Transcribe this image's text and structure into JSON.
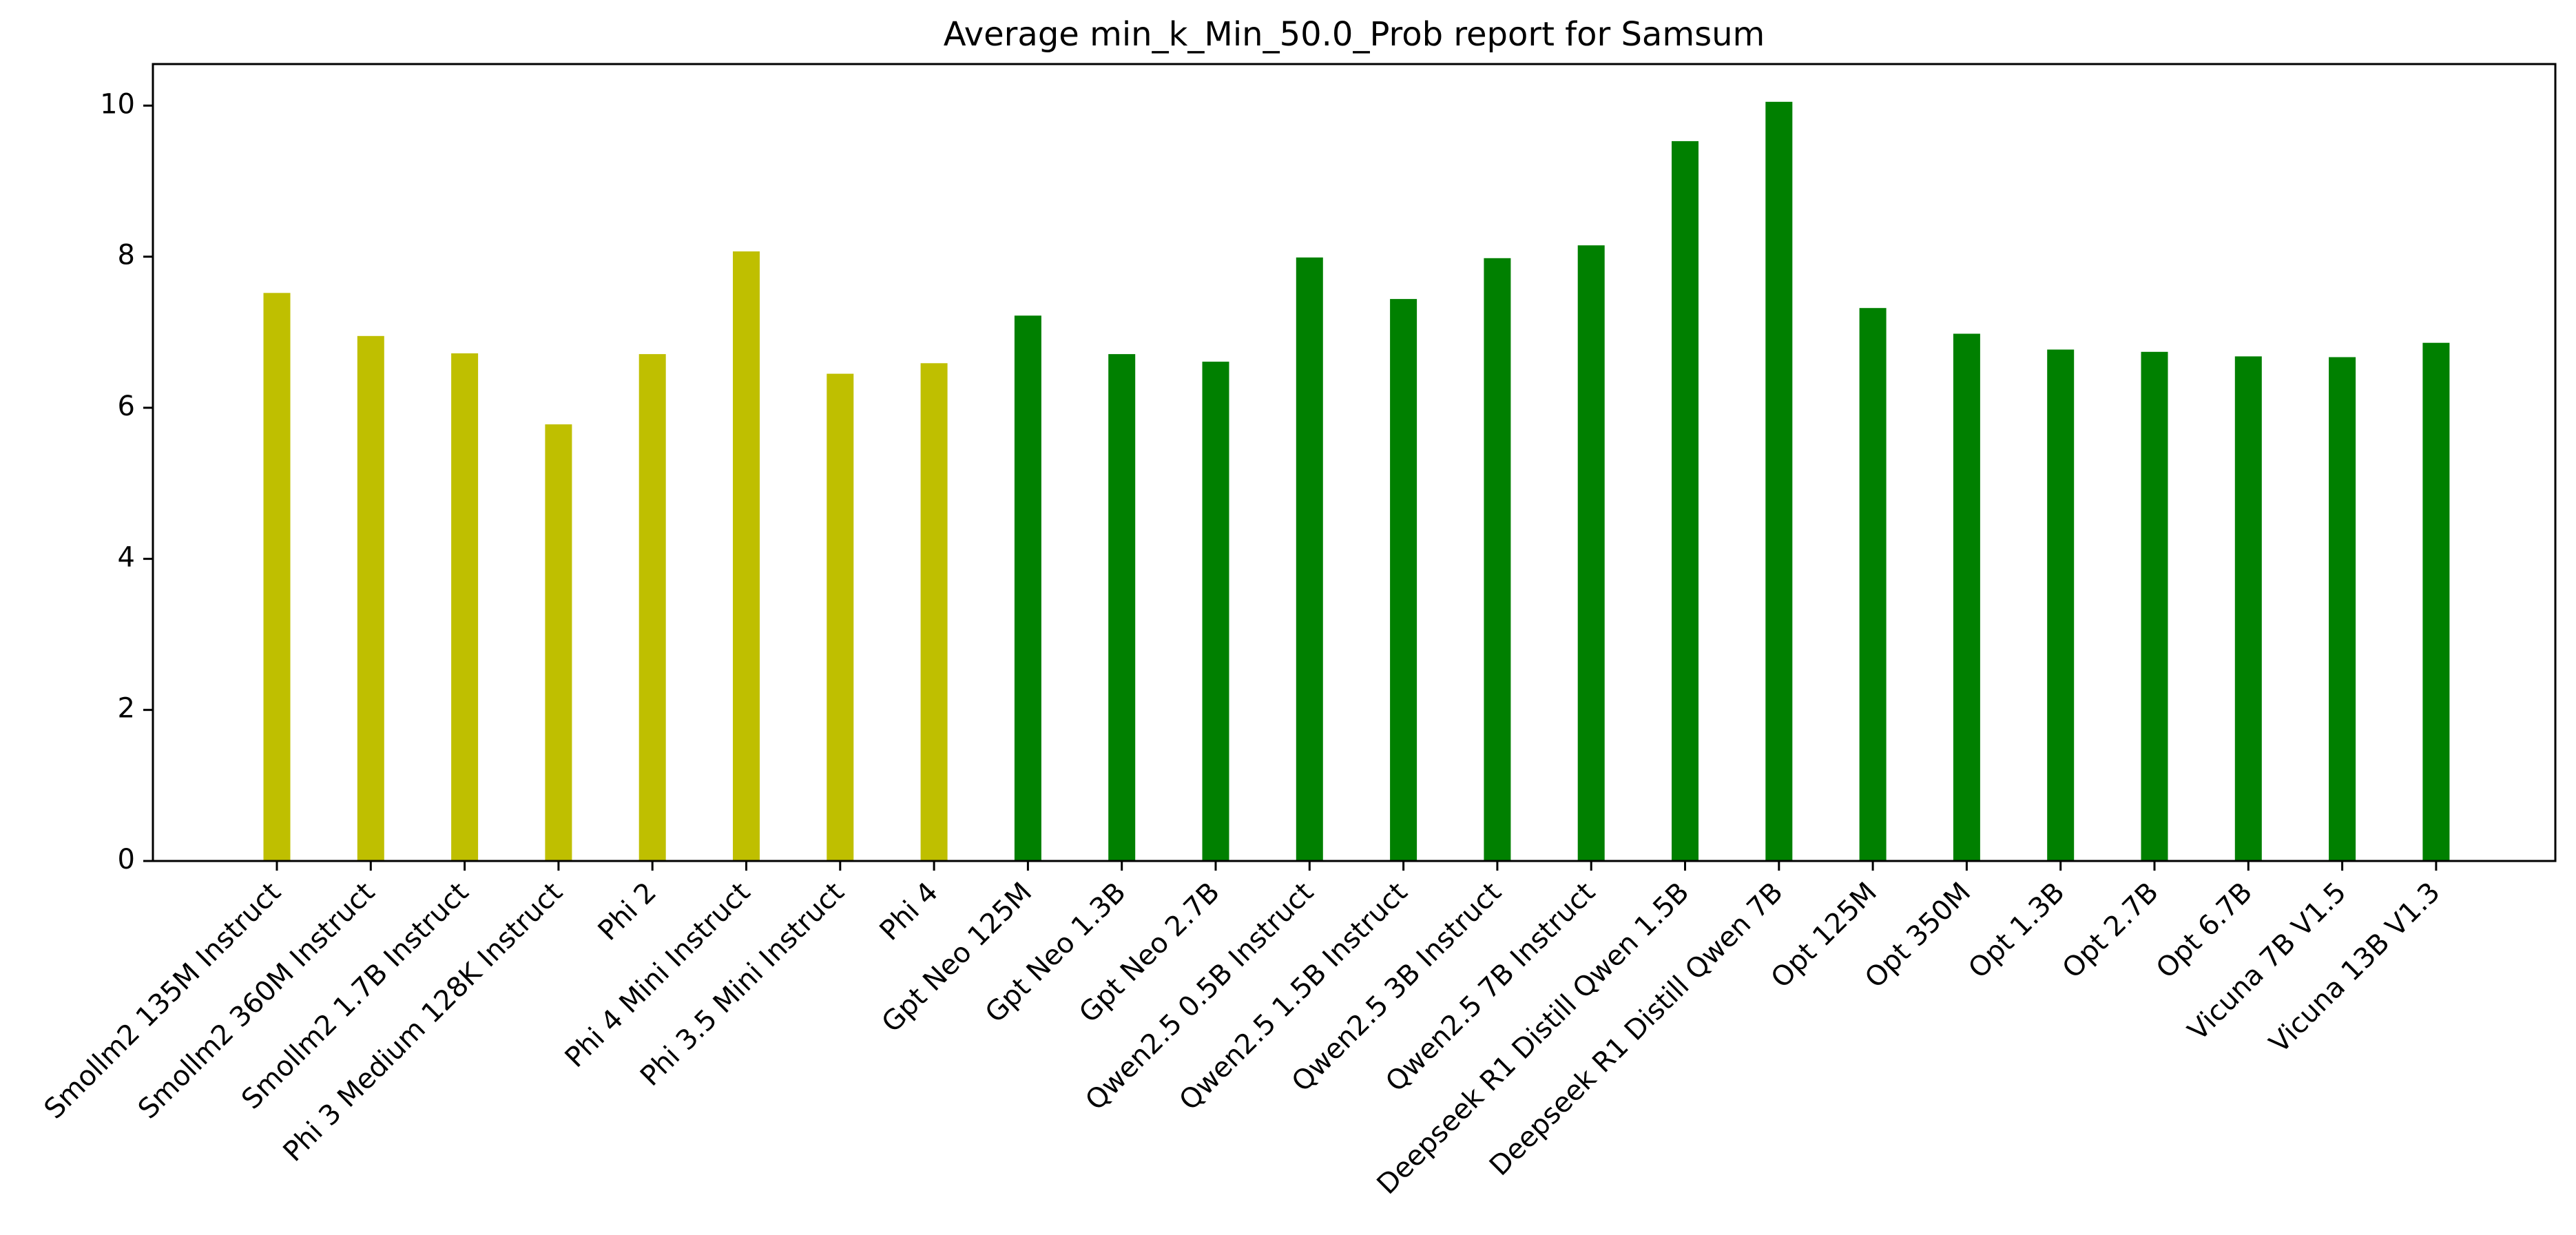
{
  "chart_data": {
    "type": "bar",
    "title": "Average min_k_Min_50.0_Prob report for Samsum",
    "xlabel": "",
    "ylabel": "",
    "ylim": [
      0,
      10.55
    ],
    "yticks": [
      0,
      2,
      4,
      6,
      8,
      10
    ],
    "categories": [
      "Smollm2 135M Instruct",
      "Smollm2 360M Instruct",
      "Smollm2 1.7B Instruct",
      "Phi 3 Medium 128K Instruct",
      "Phi 2",
      "Phi 4 Mini Instruct",
      "Phi 3.5 Mini Instruct",
      "Phi 4",
      "Gpt Neo 125M",
      "Gpt Neo 1.3B",
      "Gpt Neo 2.7B",
      "Qwen2.5 0.5B Instruct",
      "Qwen2.5 1.5B Instruct",
      "Qwen2.5 3B Instruct",
      "Qwen2.5 7B Instruct",
      "Deepseek R1 Distill Qwen 1.5B",
      "Deepseek R1 Distill Qwen 7B",
      "Opt 125M",
      "Opt 350M",
      "Opt 1.3B",
      "Opt 2.7B",
      "Opt 6.7B",
      "Vicuna 7B V1.5",
      "Vicuna 13B V1.3"
    ],
    "values": [
      7.52,
      6.95,
      6.72,
      5.78,
      6.71,
      8.07,
      6.45,
      6.59,
      7.22,
      6.71,
      6.61,
      7.99,
      7.44,
      7.98,
      8.15,
      9.53,
      10.05,
      7.32,
      6.98,
      6.77,
      6.74,
      6.68,
      6.67,
      6.86
    ],
    "bar_colors": [
      "#bfbf00",
      "#bfbf00",
      "#bfbf00",
      "#bfbf00",
      "#bfbf00",
      "#bfbf00",
      "#bfbf00",
      "#bfbf00",
      "#008000",
      "#008000",
      "#008000",
      "#008000",
      "#008000",
      "#008000",
      "#008000",
      "#008000",
      "#008000",
      "#008000",
      "#008000",
      "#008000",
      "#008000",
      "#008000",
      "#008000",
      "#008000"
    ],
    "legend": "none",
    "grid": false
  }
}
